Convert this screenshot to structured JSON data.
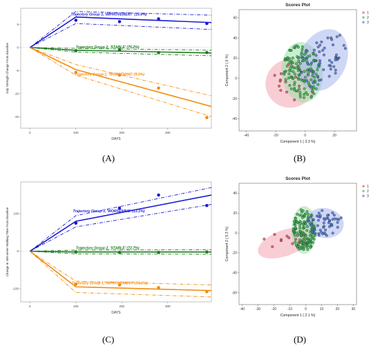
{
  "labels": {
    "A": "(A)",
    "B": "(B)",
    "C": "(C)",
    "D": "(D)"
  },
  "chart_data": [
    {
      "id": "A",
      "type": "line",
      "xlabel": "DAYS",
      "ylabel": "Grip Strength Change From Baseline",
      "xticks": [
        0,
        100,
        200,
        300
      ],
      "yticks": [
        -15,
        -10,
        -5,
        0,
        5
      ],
      "xlim": [
        -20,
        395
      ],
      "ylim": [
        -17.5,
        8.5
      ],
      "series": [
        {
          "label": "Trajectory Group 3, 'IMPROVEMENT' (15.4%)",
          "color": "#1a1ad6",
          "x": [
            0,
            100,
            395
          ],
          "y": [
            0,
            6.6,
            5.4
          ],
          "upper": [
            0,
            7.8,
            7.0
          ],
          "lower": [
            0,
            5.2,
            3.9
          ],
          "points": [
            [
              100,
              5.9
            ],
            [
              195,
              5.6
            ],
            [
              280,
              6.2
            ],
            [
              385,
              5.2
            ]
          ]
        },
        {
          "label": "Trajectory Group 2, 'STABLE' (75.2%)",
          "color": "#1d7a1d",
          "x": [
            0,
            100,
            395
          ],
          "y": [
            0,
            -0.6,
            -1.2
          ],
          "upper": [
            0,
            -0.2,
            -0.6
          ],
          "lower": [
            0,
            -1.0,
            -1.8
          ],
          "points": [
            [
              100,
              -0.7
            ],
            [
              195,
              -0.5
            ],
            [
              280,
              -1.1
            ],
            [
              385,
              -1.1
            ]
          ]
        },
        {
          "label": "Trajectory Group 1, 'WORSENING' (9.4%)",
          "color": "#f28c0e",
          "x": [
            0,
            100,
            395
          ],
          "y": [
            0,
            -4.8,
            -12.8
          ],
          "upper": [
            0,
            -3.7,
            -10.5
          ],
          "lower": [
            0,
            -6.0,
            -15.0
          ],
          "points": [
            [
              100,
              -5.4
            ],
            [
              195,
              -6.0
            ],
            [
              280,
              -8.8
            ],
            [
              385,
              -15.2
            ]
          ]
        }
      ]
    },
    {
      "id": "B",
      "type": "scatter",
      "title": "Scores Plot",
      "xlabel": "Component 1 ( 3.3 %)",
      "ylabel": "Component 2 ( 6 %)",
      "xticks": [
        -40,
        -20,
        0,
        20
      ],
      "yticks": [
        -40,
        -20,
        0,
        20,
        40,
        60
      ],
      "xlim": [
        -45,
        35
      ],
      "ylim": [
        -52,
        68
      ],
      "legend": [
        "1",
        "2",
        "3"
      ],
      "colors": [
        "#e3475b",
        "#38b24d",
        "#4f68d8"
      ],
      "ellipses": [
        {
          "cx": -10,
          "cy": -5,
          "rx": 17,
          "ry": 24,
          "angle": 20,
          "color": "#f4a4b0"
        },
        {
          "cx": -2,
          "cy": 6,
          "rx": 14,
          "ry": 30,
          "angle": 5,
          "color": "#9fe0a9"
        },
        {
          "cx": 12,
          "cy": 18,
          "rx": 16,
          "ry": 32,
          "angle": -25,
          "color": "#a8b6ee"
        }
      ]
    },
    {
      "id": "C",
      "type": "line",
      "xlabel": "DAYS",
      "ylabel": "Change in 400-meter Walking Time From Baseline",
      "xticks": [
        0,
        100,
        200,
        300
      ],
      "yticks": [
        -100,
        0,
        100
      ],
      "xlim": [
        -20,
        395
      ],
      "ylim": [
        -135,
        185
      ],
      "series": [
        {
          "label": "Trajectory Group 3, 'WORSENING' (13.1%)",
          "color": "#1a1ad6",
          "x": [
            0,
            100,
            395
          ],
          "y": [
            0,
            80,
            150
          ],
          "upper": [
            0,
            95,
            170
          ],
          "lower": [
            0,
            65,
            125
          ],
          "points": [
            [
              100,
              75
            ],
            [
              195,
              115
            ],
            [
              280,
              150
            ],
            [
              385,
              122
            ]
          ]
        },
        {
          "label": "Trajectory Group 2, 'STABLE' (72.7%)",
          "color": "#1d7a1d",
          "x": [
            0,
            100,
            395
          ],
          "y": [
            0,
            -2,
            -2
          ],
          "upper": [
            0,
            3,
            4
          ],
          "lower": [
            0,
            -7,
            -8
          ],
          "points": [
            [
              100,
              -2
            ],
            [
              195,
              -3
            ],
            [
              280,
              -3
            ],
            [
              385,
              -2
            ]
          ]
        },
        {
          "label": "Trajectory Group 1, 'IMPROVEMENT' (15.1%)",
          "color": "#f28c0e",
          "x": [
            0,
            100,
            395
          ],
          "y": [
            0,
            -95,
            -105
          ],
          "upper": [
            0,
            -80,
            -90
          ],
          "lower": [
            0,
            -110,
            -122
          ],
          "points": [
            [
              100,
              -88
            ],
            [
              195,
              -90
            ],
            [
              280,
              -97
            ],
            [
              385,
              -108
            ]
          ]
        }
      ]
    },
    {
      "id": "D",
      "type": "scatter",
      "title": "Scores Plot",
      "xlabel": "Component 1 ( 2.1 %)",
      "ylabel": "Component 2 ( 5.3 %)",
      "xticks": [
        -40,
        -30,
        -20,
        -10,
        0,
        10,
        20,
        30
      ],
      "yticks": [
        -60,
        -40,
        -20,
        0,
        20,
        40
      ],
      "xlim": [
        -42,
        32
      ],
      "ylim": [
        -72,
        50
      ],
      "legend": [
        "1",
        "2",
        "3"
      ],
      "colors": [
        "#e3475b",
        "#38b24d",
        "#4f68d8"
      ],
      "ellipses": [
        {
          "cx": -13,
          "cy": -10,
          "rx": 18,
          "ry": 13,
          "angle": 20,
          "color": "#f4a4b0"
        },
        {
          "cx": -1,
          "cy": 3,
          "rx": 8,
          "ry": 24,
          "angle": 0,
          "color": "#9fe0a9"
        },
        {
          "cx": 12,
          "cy": 10,
          "rx": 12,
          "ry": 15,
          "angle": -10,
          "color": "#a8b6ee"
        }
      ]
    }
  ]
}
